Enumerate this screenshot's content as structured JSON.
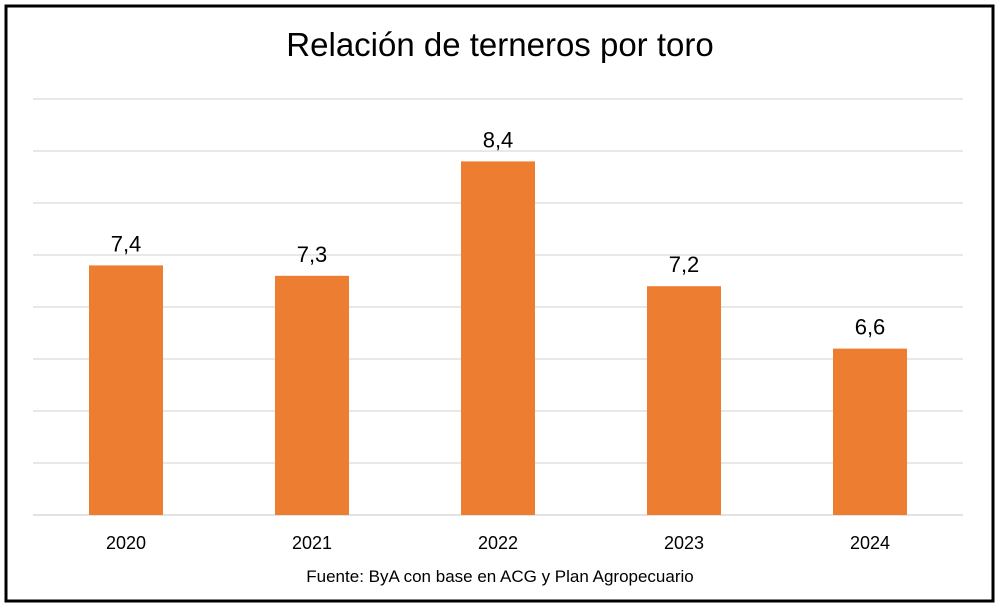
{
  "chart_data": {
    "type": "bar",
    "title": "Relación de terneros por toro",
    "categories": [
      "2020",
      "2021",
      "2022",
      "2023",
      "2024"
    ],
    "values": [
      7.4,
      7.3,
      8.4,
      7.2,
      6.6
    ],
    "value_labels": [
      "7,4",
      "7,3",
      "8,4",
      "7,2",
      "6,6"
    ],
    "xlabel": "",
    "ylabel": "",
    "ylim": [
      5.0,
      9.0
    ],
    "grid": true,
    "legend": "none",
    "bar_color": "#ED7D31"
  },
  "source": "Fuente: ByA con base en ACG y Plan Agropecuario",
  "colors": {
    "bar": "#ED7D31",
    "grid": "#D9D9D9",
    "border": "#000000",
    "text": "#000000"
  }
}
